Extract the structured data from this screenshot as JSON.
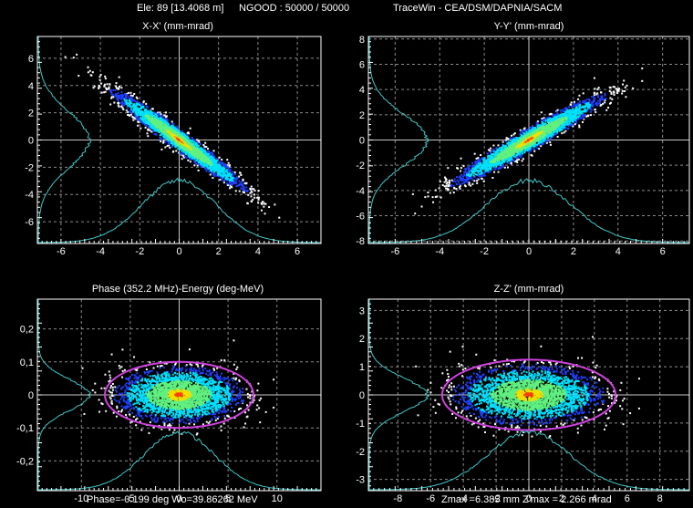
{
  "header": {
    "element": "Ele: 89 [13.4068 m]",
    "ngood": "NGOOD : 50000 / 50000",
    "app": "TraceWin - CEA/DSM/DAPNIA/SACM"
  },
  "colors": {
    "background": "#000000",
    "frame": "#ffffff",
    "grid_dash": "#c8c8c8",
    "profile": "#40c8c8",
    "ellipse": "#d040e0",
    "density_low": "#2040ff",
    "density_mid": "#00e0ff",
    "density_high": "#f0e000",
    "density_peak": "#ff4000"
  },
  "plots": [
    {
      "id": "xx",
      "title": "X-X' (mm-mrad)",
      "x_ticks": [
        "-6",
        "-4",
        "-2",
        "0",
        "2",
        "4",
        "6"
      ],
      "y_ticks": [
        "6",
        "4",
        "2",
        "0",
        "-2",
        "-4",
        "-6"
      ],
      "footer": ""
    },
    {
      "id": "yy",
      "title": "Y-Y' (mm-mrad)",
      "x_ticks": [
        "-6",
        "-4",
        "-2",
        "0",
        "2",
        "4",
        "6"
      ],
      "y_ticks": [
        "8",
        "6",
        "4",
        "2",
        "0",
        "-2",
        "-4",
        "-6",
        "-8"
      ],
      "footer": ""
    },
    {
      "id": "phe",
      "title": "Phase (352.2 MHz)-Energy (deg-MeV)",
      "x_ticks": [
        "-10",
        "-5",
        "0",
        "5",
        "10"
      ],
      "y_ticks": [
        "0,2",
        "0,1",
        "0",
        "-0,1",
        "-0,2"
      ],
      "footer": "Phase=-0.199 deg  Wo=39.86262 MeV"
    },
    {
      "id": "zz",
      "title": "Z-Z' (mm-mrad)",
      "x_ticks": [
        "-8",
        "-6",
        "-4",
        "-2",
        "0",
        "2",
        "4",
        "6",
        "8"
      ],
      "y_ticks": [
        "3",
        "2",
        "1",
        "0",
        "-1",
        "-2",
        "-3"
      ],
      "footer": "Zmax =6.385 mm  Z'max = 2.266 mrad"
    }
  ],
  "chart_data": [
    {
      "type": "scatter",
      "title": "X-X' (mm-mrad)",
      "xlim": [
        -7.2,
        7.2
      ],
      "ylim": [
        -7.6,
        7.6
      ],
      "grid": true,
      "distribution": {
        "shape": "tilted-ellipse",
        "x_halfwidth": 4.0,
        "y_halfwidth": 4.3,
        "correlation": -0.97
      },
      "profiles": [
        "x-projection along bottom",
        "y-projection along left"
      ]
    },
    {
      "type": "scatter",
      "title": "Y-Y' (mm-mrad)",
      "xlim": [
        -7.2,
        7.2
      ],
      "ylim": [
        -8.2,
        8.2
      ],
      "grid": true,
      "distribution": {
        "shape": "tilted-ellipse",
        "x_halfwidth": 4.0,
        "y_halfwidth": 4.2,
        "correlation": 0.96
      },
      "profiles": [
        "x-projection along bottom",
        "y-projection along left"
      ]
    },
    {
      "type": "scatter",
      "title": "Phase (352.2 MHz)-Energy (deg-MeV)",
      "xlim": [
        -14.5,
        14.5
      ],
      "ylim": [
        -0.29,
        0.29
      ],
      "grid": true,
      "distribution": {
        "shape": "upright-ellipse",
        "x_halfwidth": 7.6,
        "y_halfwidth": 0.1,
        "correlation": 0.0
      },
      "profiles": [
        "x-projection along bottom",
        "y-projection along left"
      ]
    },
    {
      "type": "scatter",
      "title": "Z-Z' (mm-mrad)",
      "xlim": [
        -9.8,
        9.8
      ],
      "ylim": [
        -3.4,
        3.4
      ],
      "grid": true,
      "distribution": {
        "shape": "upright-ellipse",
        "x_halfwidth": 5.3,
        "y_halfwidth": 1.25,
        "correlation": 0.0
      },
      "profiles": [
        "x-projection along bottom",
        "y-projection along left"
      ]
    }
  ]
}
